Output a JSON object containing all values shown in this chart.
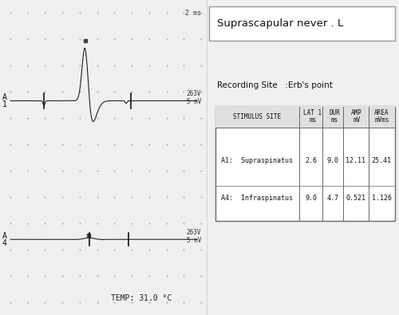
{
  "title": "Suprascapular never . L",
  "recording_site": "Recording Site   :Erb's point",
  "temp": "TEMP: 31.0 °C",
  "time_scale": "2 ms",
  "left_bg_color": "#c8c8c8",
  "right_bg_color": "#f0f0f0",
  "border_color": "#888888",
  "grid_color": "#aaaaaa",
  "waveform_color": "#222222",
  "label_A1": "A\n1",
  "label_A4": "A\n4",
  "scale_label_top": "263V\n5 mV",
  "scale_label_bottom": "263V\n5 mV",
  "table_headers": [
    "STIMULUS SITE",
    "LAT 1\nms",
    "DUR\nms",
    "AMP\nmV",
    "AREA\nmVms"
  ],
  "table_row1": [
    "A1:  Supraspinatus",
    "2.6",
    "9.0",
    "12.11",
    "25.41"
  ],
  "table_row2": [
    "A4:  Infraspinatus",
    "9.0",
    "4.7",
    "0.521",
    "1.126"
  ],
  "dot_color": "#444444",
  "tick_color": "#111111"
}
